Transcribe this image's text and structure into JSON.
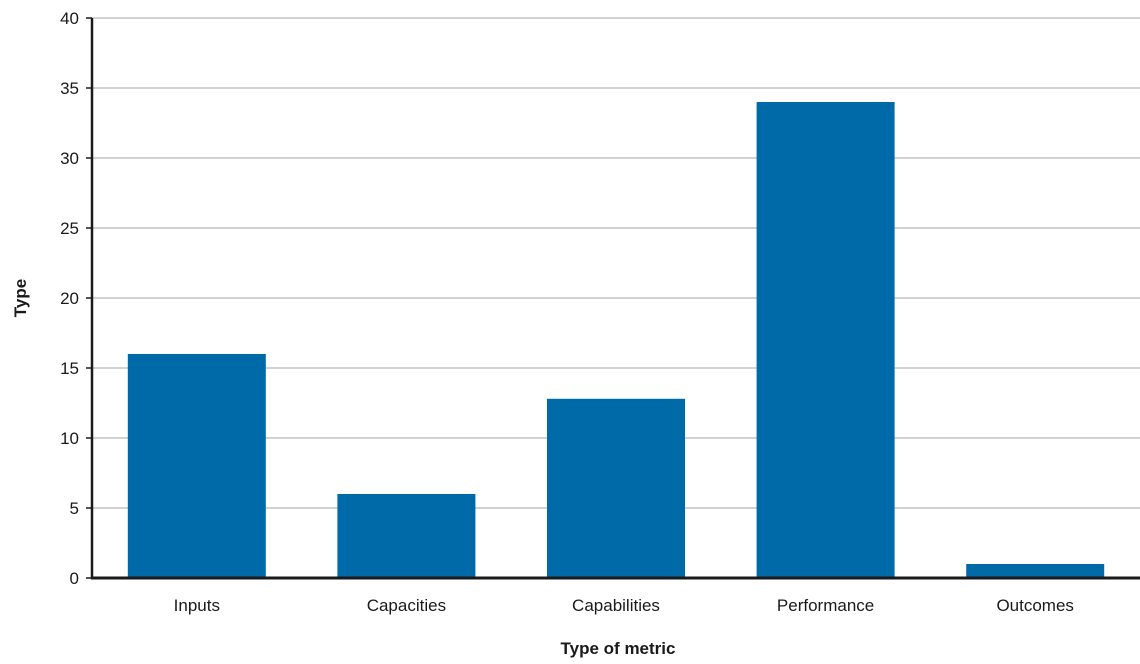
{
  "chart_data": {
    "type": "bar",
    "categories": [
      "Inputs",
      "Capacities",
      "Capabilities",
      "Performance",
      "Outcomes"
    ],
    "values": [
      16,
      6,
      12.8,
      34,
      1
    ],
    "xlabel": "Type of metric",
    "ylabel": "Type",
    "ylim": [
      0,
      40
    ],
    "yticks": [
      0,
      5,
      10,
      15,
      20,
      25,
      30,
      35,
      40
    ],
    "grid": true,
    "legend": "none",
    "colors": {
      "bar": "#006aa9",
      "grid": "#a6a6a6",
      "axis": "#1a1a1a"
    }
  }
}
